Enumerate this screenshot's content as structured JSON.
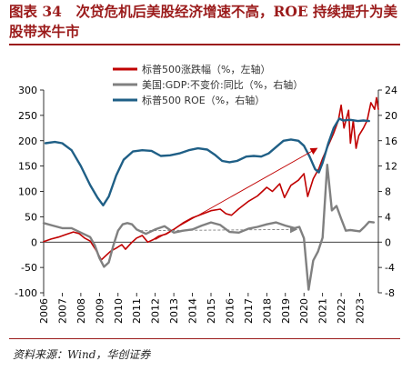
{
  "figure": {
    "title": "图表 34　次贷危机后美股经济增速不高，ROE 持续提升为美股带来牛市",
    "source": "资料来源：Wind，华创证券"
  },
  "chart_data": {
    "type": "line",
    "title": "",
    "x_ticks": [
      "2006",
      "2007",
      "2008",
      "2009",
      "2010",
      "2011",
      "2012",
      "2013",
      "2014",
      "2015",
      "2016",
      "2017",
      "2018",
      "2019",
      "2020",
      "2021",
      "2022",
      "2023"
    ],
    "y_left": {
      "ylim": [
        -100,
        300
      ],
      "ticks": [
        "300",
        "250",
        "200",
        "150",
        "100",
        "50",
        "0",
        "-50",
        "-100"
      ]
    },
    "y_right": {
      "ylim": [
        -8,
        24
      ],
      "ticks": [
        "24",
        "20",
        "16",
        "12",
        "8",
        "4",
        "0",
        "-4",
        "-8"
      ]
    },
    "legend": {
      "placement": "top-left"
    },
    "series": [
      {
        "name": "标普500涨跌幅（%，左轴）",
        "color": "#c00000",
        "axis": "left",
        "points": [
          [
            2006.0,
            1
          ],
          [
            2006.4,
            6
          ],
          [
            2006.8,
            10
          ],
          [
            2007.2,
            15
          ],
          [
            2007.6,
            20
          ],
          [
            2007.9,
            17
          ],
          [
            2008.2,
            8
          ],
          [
            2008.5,
            2
          ],
          [
            2008.8,
            -15
          ],
          [
            2009.1,
            -35
          ],
          [
            2009.3,
            -28
          ],
          [
            2009.6,
            -18
          ],
          [
            2009.9,
            -12
          ],
          [
            2010.2,
            -5
          ],
          [
            2010.4,
            -14
          ],
          [
            2010.7,
            -2
          ],
          [
            2011.0,
            8
          ],
          [
            2011.3,
            13
          ],
          [
            2011.6,
            0
          ],
          [
            2011.9,
            5
          ],
          [
            2012.2,
            12
          ],
          [
            2012.6,
            16
          ],
          [
            2013.0,
            25
          ],
          [
            2013.5,
            38
          ],
          [
            2014.0,
            48
          ],
          [
            2014.5,
            55
          ],
          [
            2015.0,
            62
          ],
          [
            2015.5,
            65
          ],
          [
            2015.8,
            56
          ],
          [
            2016.1,
            53
          ],
          [
            2016.5,
            66
          ],
          [
            2017.0,
            80
          ],
          [
            2017.5,
            91
          ],
          [
            2018.0,
            108
          ],
          [
            2018.3,
            100
          ],
          [
            2018.7,
            115
          ],
          [
            2018.95,
            88
          ],
          [
            2019.3,
            112
          ],
          [
            2019.7,
            122
          ],
          [
            2020.0,
            135
          ],
          [
            2020.2,
            90
          ],
          [
            2020.5,
            125
          ],
          [
            2020.8,
            145
          ],
          [
            2021.0,
            165
          ],
          [
            2021.3,
            190
          ],
          [
            2021.6,
            215
          ],
          [
            2021.85,
            240
          ],
          [
            2022.0,
            270
          ],
          [
            2022.15,
            225
          ],
          [
            2022.4,
            260
          ],
          [
            2022.5,
            195
          ],
          [
            2022.65,
            240
          ],
          [
            2022.8,
            185
          ],
          [
            2022.95,
            210
          ],
          [
            2023.2,
            225
          ],
          [
            2023.4,
            240
          ],
          [
            2023.6,
            275
          ],
          [
            2023.8,
            262
          ],
          [
            2023.9,
            285
          ],
          [
            2024.0,
            262
          ]
        ]
      },
      {
        "name": "美国:GDP:不变价:同比（%，右轴）",
        "color": "#808080",
        "axis": "right",
        "points": [
          [
            2006.0,
            3.0
          ],
          [
            2006.5,
            2.6
          ],
          [
            2007.0,
            2.2
          ],
          [
            2007.5,
            2.2
          ],
          [
            2008.0,
            1.5
          ],
          [
            2008.5,
            0.8
          ],
          [
            2008.75,
            -0.5
          ],
          [
            2009.0,
            -2.5
          ],
          [
            2009.25,
            -3.9
          ],
          [
            2009.5,
            -3.2
          ],
          [
            2009.75,
            -0.5
          ],
          [
            2010.0,
            1.8
          ],
          [
            2010.25,
            2.8
          ],
          [
            2010.5,
            3.0
          ],
          [
            2010.75,
            2.8
          ],
          [
            2011.0,
            2.0
          ],
          [
            2011.5,
            1.3
          ],
          [
            2012.0,
            2.0
          ],
          [
            2012.5,
            2.5
          ],
          [
            2013.0,
            1.5
          ],
          [
            2013.5,
            1.8
          ],
          [
            2014.0,
            2.0
          ],
          [
            2014.5,
            2.6
          ],
          [
            2015.0,
            3.1
          ],
          [
            2015.5,
            2.7
          ],
          [
            2016.0,
            1.6
          ],
          [
            2016.5,
            1.5
          ],
          [
            2017.0,
            2.1
          ],
          [
            2017.5,
            2.4
          ],
          [
            2018.0,
            2.8
          ],
          [
            2018.5,
            3.1
          ],
          [
            2019.0,
            2.6
          ],
          [
            2019.5,
            2.2
          ],
          [
            2019.75,
            2.4
          ],
          [
            2020.0,
            0.6
          ],
          [
            2020.25,
            -7.5
          ],
          [
            2020.5,
            -2.9
          ],
          [
            2020.75,
            -1.5
          ],
          [
            2021.0,
            0.7
          ],
          [
            2021.25,
            12.2
          ],
          [
            2021.5,
            5.0
          ],
          [
            2021.75,
            5.7
          ],
          [
            2022.0,
            3.7
          ],
          [
            2022.25,
            1.8
          ],
          [
            2022.5,
            1.9
          ],
          [
            2023.0,
            1.7
          ],
          [
            2023.25,
            2.4
          ],
          [
            2023.5,
            3.2
          ],
          [
            2023.75,
            3.1
          ]
        ]
      },
      {
        "name": "标普500 ROE（%，右轴）",
        "color": "#1f5f86",
        "axis": "right",
        "points": [
          [
            2006.1,
            15.6
          ],
          [
            2006.6,
            15.8
          ],
          [
            2007.0,
            15.6
          ],
          [
            2007.5,
            14.5
          ],
          [
            2008.0,
            12.0
          ],
          [
            2008.5,
            9.0
          ],
          [
            2008.9,
            7.0
          ],
          [
            2009.2,
            5.8
          ],
          [
            2009.5,
            7.2
          ],
          [
            2009.9,
            10.5
          ],
          [
            2010.3,
            13.0
          ],
          [
            2010.8,
            14.3
          ],
          [
            2011.3,
            14.5
          ],
          [
            2011.8,
            14.4
          ],
          [
            2012.3,
            13.6
          ],
          [
            2012.8,
            13.7
          ],
          [
            2013.3,
            14.0
          ],
          [
            2013.8,
            14.5
          ],
          [
            2014.3,
            14.8
          ],
          [
            2014.8,
            14.6
          ],
          [
            2015.2,
            13.8
          ],
          [
            2015.6,
            12.8
          ],
          [
            2016.0,
            12.6
          ],
          [
            2016.4,
            12.8
          ],
          [
            2016.9,
            13.5
          ],
          [
            2017.3,
            13.6
          ],
          [
            2017.7,
            13.5
          ],
          [
            2018.1,
            14.0
          ],
          [
            2018.5,
            15.0
          ],
          [
            2018.9,
            16.0
          ],
          [
            2019.3,
            16.2
          ],
          [
            2019.7,
            16.0
          ],
          [
            2020.0,
            15.2
          ],
          [
            2020.3,
            13.5
          ],
          [
            2020.6,
            11.5
          ],
          [
            2020.8,
            11.0
          ],
          [
            2021.0,
            12.5
          ],
          [
            2021.3,
            15.5
          ],
          [
            2021.6,
            18.0
          ],
          [
            2021.9,
            19.5
          ],
          [
            2022.1,
            19.2
          ],
          [
            2022.5,
            19.3
          ],
          [
            2022.9,
            19.1
          ],
          [
            2023.2,
            19.2
          ],
          [
            2023.5,
            19.1
          ]
        ]
      }
    ],
    "annotations": [
      {
        "type": "arrow",
        "color": "#c00000",
        "from": [
          2012.0,
          5
        ],
        "to": [
          2020.7,
          185
        ]
      },
      {
        "type": "arrow",
        "color": "#808080",
        "axis": "right",
        "from": [
          2011.2,
          1.8
        ],
        "to": [
          2019.6,
          2.0
        ]
      }
    ]
  }
}
